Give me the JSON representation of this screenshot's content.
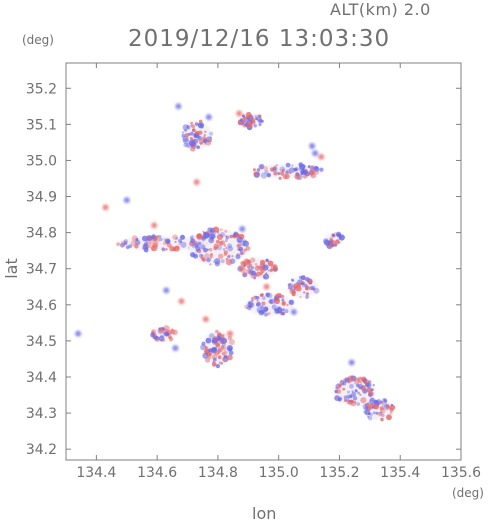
{
  "header": {
    "alt_label": "ALT(km)  2.0",
    "timestamp": "2019/12/16 13:03:30"
  },
  "chart_data": {
    "type": "heatmap",
    "title": "2019/12/16 13:03:30",
    "xlabel": "lon",
    "ylabel": "lat",
    "x_unit": "(deg)",
    "y_unit": "(deg)",
    "xlim": [
      134.3,
      135.6
    ],
    "ylim": [
      34.17,
      35.27
    ],
    "x_ticks": [
      "134.4",
      "134.6",
      "134.8",
      "135.0",
      "135.2",
      "135.4",
      "135.6"
    ],
    "y_ticks": [
      "34.2",
      "34.3",
      "34.4",
      "34.5",
      "34.6",
      "34.7",
      "34.8",
      "34.9",
      "35.0",
      "35.1",
      "35.2"
    ],
    "colors": {
      "positive": "#e86a6a",
      "negative": "#6a6ae8",
      "frame": "#808080"
    },
    "echo_regions": [
      {
        "lon": 134.62,
        "lat": 34.77,
        "rx": 0.15,
        "ry": 0.02
      },
      {
        "lon": 134.8,
        "lat": 34.76,
        "rx": 0.1,
        "ry": 0.05
      },
      {
        "lon": 135.03,
        "lat": 34.97,
        "rx": 0.12,
        "ry": 0.02
      },
      {
        "lon": 134.93,
        "lat": 34.7,
        "rx": 0.06,
        "ry": 0.03
      },
      {
        "lon": 134.97,
        "lat": 34.6,
        "rx": 0.08,
        "ry": 0.03
      },
      {
        "lon": 134.8,
        "lat": 34.48,
        "rx": 0.05,
        "ry": 0.05
      },
      {
        "lon": 135.25,
        "lat": 34.36,
        "rx": 0.07,
        "ry": 0.04
      },
      {
        "lon": 134.73,
        "lat": 35.07,
        "rx": 0.05,
        "ry": 0.04
      },
      {
        "lon": 134.62,
        "lat": 34.52,
        "rx": 0.04,
        "ry": 0.02
      },
      {
        "lon": 135.18,
        "lat": 34.78,
        "rx": 0.03,
        "ry": 0.02
      },
      {
        "lon": 135.08,
        "lat": 34.65,
        "rx": 0.05,
        "ry": 0.03
      },
      {
        "lon": 134.91,
        "lat": 35.11,
        "rx": 0.04,
        "ry": 0.02
      },
      {
        "lon": 135.33,
        "lat": 34.31,
        "rx": 0.05,
        "ry": 0.03
      }
    ],
    "isolated_echoes": [
      {
        "lon": 134.43,
        "lat": 34.87,
        "sign": "positive"
      },
      {
        "lon": 134.5,
        "lat": 34.89,
        "sign": "negative"
      },
      {
        "lon": 134.34,
        "lat": 34.52,
        "sign": "negative"
      },
      {
        "lon": 134.59,
        "lat": 34.82,
        "sign": "positive"
      },
      {
        "lon": 134.77,
        "lat": 35.12,
        "sign": "negative"
      },
      {
        "lon": 134.87,
        "lat": 35.13,
        "sign": "positive"
      },
      {
        "lon": 134.67,
        "lat": 35.15,
        "sign": "negative"
      },
      {
        "lon": 135.14,
        "lat": 35.01,
        "sign": "positive"
      },
      {
        "lon": 135.12,
        "lat": 35.02,
        "sign": "negative"
      },
      {
        "lon": 135.11,
        "lat": 35.04,
        "sign": "negative"
      },
      {
        "lon": 134.84,
        "lat": 34.52,
        "sign": "positive"
      },
      {
        "lon": 134.76,
        "lat": 34.56,
        "sign": "positive"
      },
      {
        "lon": 134.66,
        "lat": 34.48,
        "sign": "negative"
      },
      {
        "lon": 134.68,
        "lat": 34.61,
        "sign": "positive"
      },
      {
        "lon": 134.88,
        "lat": 34.81,
        "sign": "negative"
      },
      {
        "lon": 134.73,
        "lat": 34.94,
        "sign": "positive"
      },
      {
        "lon": 135.24,
        "lat": 34.44,
        "sign": "negative"
      },
      {
        "lon": 134.63,
        "lat": 34.64,
        "sign": "negative"
      },
      {
        "lon": 134.96,
        "lat": 34.65,
        "sign": "positive"
      },
      {
        "lon": 135.05,
        "lat": 34.58,
        "sign": "negative"
      }
    ]
  }
}
